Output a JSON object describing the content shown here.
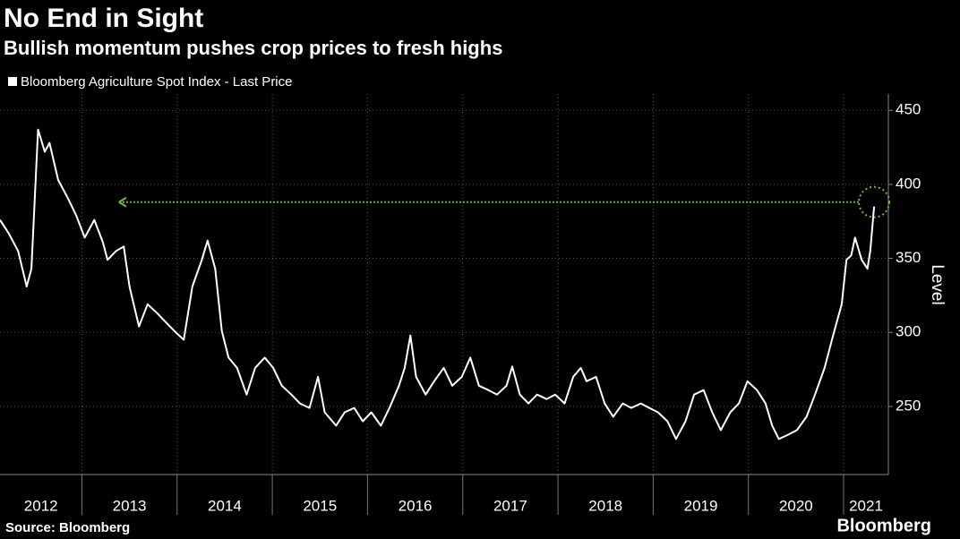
{
  "chart_data": {
    "type": "line",
    "title": "No End in Sight",
    "subtitle": "Bullish momentum pushes crop prices to fresh highs",
    "y_label": "Level",
    "source": "Source: Bloomberg",
    "brand": "Bloomberg",
    "xlim": [
      2012.14,
      2021.47
    ],
    "ylim": [
      204,
      461
    ],
    "yticks": [
      250,
      300,
      350,
      400,
      450
    ],
    "xticks": [
      {
        "value": 2012,
        "label": "2012"
      },
      {
        "value": 2013,
        "label": "2013"
      },
      {
        "value": 2014,
        "label": "2014"
      },
      {
        "value": 2015,
        "label": "2015"
      },
      {
        "value": 2016,
        "label": "2016"
      },
      {
        "value": 2017,
        "label": "2017"
      },
      {
        "value": 2018,
        "label": "2018"
      },
      {
        "value": 2019,
        "label": "2019"
      },
      {
        "value": 2020,
        "label": "2020"
      },
      {
        "value": 2021,
        "label": "2021"
      }
    ],
    "grid": true,
    "x": [
      2012.14,
      2012.23,
      2012.33,
      2012.42,
      2012.47,
      2012.54,
      2012.61,
      2012.66,
      2012.75,
      2012.85,
      2012.94,
      2013.03,
      2013.13,
      2013.22,
      2013.27,
      2013.36,
      2013.44,
      2013.5,
      2013.6,
      2013.69,
      2013.79,
      2013.88,
      2013.97,
      2014.07,
      2014.16,
      2014.26,
      2014.32,
      2014.4,
      2014.47,
      2014.54,
      2014.63,
      2014.73,
      2014.82,
      2014.92,
      2015.01,
      2015.1,
      2015.2,
      2015.29,
      2015.39,
      2015.48,
      2015.55,
      2015.67,
      2015.76,
      2015.86,
      2015.95,
      2016.04,
      2016.14,
      2016.23,
      2016.33,
      2016.39,
      2016.45,
      2016.51,
      2016.61,
      2016.7,
      2016.8,
      2016.89,
      2016.99,
      2017.08,
      2017.17,
      2017.27,
      2017.36,
      2017.46,
      2017.52,
      2017.6,
      2017.69,
      2017.78,
      2017.88,
      2017.97,
      2018.07,
      2018.16,
      2018.24,
      2018.3,
      2018.4,
      2018.49,
      2018.58,
      2018.68,
      2018.77,
      2018.87,
      2018.96,
      2019.05,
      2019.15,
      2019.24,
      2019.34,
      2019.43,
      2019.53,
      2019.62,
      2019.71,
      2019.81,
      2019.9,
      2019.99,
      2020.09,
      2020.18,
      2020.25,
      2020.32,
      2020.42,
      2020.51,
      2020.61,
      2020.7,
      2020.8,
      2020.89,
      2020.98,
      2021.03,
      2021.08,
      2021.12,
      2021.19,
      2021.25,
      2021.28,
      2021.32
    ],
    "series": [
      {
        "name": "Bloomberg Agriculture Spot Index - Last Price",
        "color": "#ffffff",
        "values": [
          376,
          367,
          355,
          331,
          343,
          437,
          422,
          428,
          403,
          391,
          379,
          364,
          376,
          361,
          349,
          355,
          358,
          331,
          304,
          319,
          313,
          307,
          301,
          295,
          331,
          349,
          362,
          343,
          301,
          283,
          276,
          258,
          276,
          283,
          276,
          264,
          258,
          252,
          249,
          270,
          246,
          237,
          246,
          249,
          240,
          246,
          237,
          249,
          264,
          276,
          298,
          270,
          258,
          267,
          276,
          264,
          270,
          283,
          264,
          261,
          258,
          264,
          277,
          258,
          252,
          258,
          255,
          258,
          252,
          270,
          276,
          267,
          270,
          252,
          243,
          252,
          249,
          252,
          249,
          246,
          240,
          228,
          240,
          258,
          261,
          246,
          234,
          246,
          252,
          267,
          261,
          252,
          237,
          228,
          231,
          234,
          243,
          258,
          276,
          298,
          319,
          349,
          352,
          364,
          349,
          343,
          355,
          385
        ]
      }
    ],
    "annotation": {
      "y": 388,
      "x_start": 2013.39,
      "x_end": 2021.32,
      "color": "#6abf3a"
    }
  }
}
